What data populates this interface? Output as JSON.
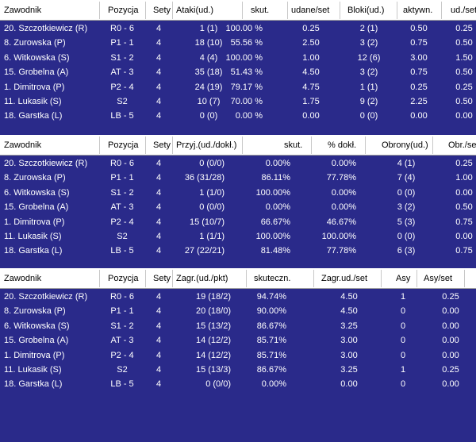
{
  "tables": [
    {
      "header": [
        "Zawodnik",
        "Pozycja",
        "Sety",
        "Ataki(ud.)",
        "skut.",
        "udane/set",
        "Bloki(ud.)",
        "aktywn.",
        "ud./set"
      ],
      "rows": [
        [
          "20. Szczotkiewicz (R)",
          "R0 - 6",
          "4",
          "1 (1)",
          "100.00 %",
          "0.25",
          "2 (1)",
          "0.50",
          "0.25"
        ],
        [
          "8. Zurowska (P)",
          "P1 - 1",
          "4",
          "18 (10)",
          "55.56 %",
          "2.50",
          "3 (2)",
          "0.75",
          "0.50"
        ],
        [
          "6. Witkowska (S)",
          "S1 - 2",
          "4",
          "4 (4)",
          "100.00 %",
          "1.00",
          "12 (6)",
          "3.00",
          "1.50"
        ],
        [
          "15. Grobelna (A)",
          "AT - 3",
          "4",
          "35 (18)",
          "51.43 %",
          "4.50",
          "3 (2)",
          "0.75",
          "0.50"
        ],
        [
          "1. Dimitrova (P)",
          "P2 - 4",
          "4",
          "24 (19)",
          "79.17 %",
          "4.75",
          "1 (1)",
          "0.25",
          "0.25"
        ],
        [
          "11. Lukasik (S)",
          "S2",
          "4",
          "10 (7)",
          "70.00 %",
          "1.75",
          "9 (2)",
          "2.25",
          "0.50"
        ],
        [
          "18. Garstka (L)",
          "LB - 5",
          "4",
          "0 (0)",
          "0.00 %",
          "0.00",
          "0 (0)",
          "0.00",
          "0.00"
        ]
      ]
    },
    {
      "header": [
        "Zawodnik",
        "Pozycja",
        "Sety",
        "Przyj.(ud./dokł.)",
        "skut.",
        "% dokł.",
        "Obrony(ud.)",
        "Obr./se"
      ],
      "rows": [
        [
          "20. Szczotkiewicz (R)",
          "R0 - 6",
          "4",
          "0 (0/0)",
          "0.00%",
          "0.00%",
          "4 (1)",
          "0.25"
        ],
        [
          "8. Zurowska (P)",
          "P1 - 1",
          "4",
          "36 (31/28)",
          "86.11%",
          "77.78%",
          "7 (4)",
          "1.00"
        ],
        [
          "6. Witkowska (S)",
          "S1 - 2",
          "4",
          "1 (1/0)",
          "100.00%",
          "0.00%",
          "0 (0)",
          "0.00"
        ],
        [
          "15. Grobelna (A)",
          "AT - 3",
          "4",
          "0 (0/0)",
          "0.00%",
          "0.00%",
          "3 (2)",
          "0.50"
        ],
        [
          "1. Dimitrova (P)",
          "P2 - 4",
          "4",
          "15 (10/7)",
          "66.67%",
          "46.67%",
          "5 (3)",
          "0.75"
        ],
        [
          "11. Lukasik (S)",
          "S2",
          "4",
          "1 (1/1)",
          "100.00%",
          "100.00%",
          "0 (0)",
          "0.00"
        ],
        [
          "18. Garstka (L)",
          "LB - 5",
          "4",
          "27 (22/21)",
          "81.48%",
          "77.78%",
          "6 (3)",
          "0.75"
        ]
      ]
    },
    {
      "header": [
        "Zawodnik",
        "Pozycja",
        "Sety",
        "Zagr.(ud./pkt)",
        "skuteczn.",
        "Zagr.ud./set",
        "Asy",
        "Asy/set"
      ],
      "rows": [
        [
          "20. Szczotkiewicz (R)",
          "R0 - 6",
          "4",
          "19 (18/2)",
          "94.74%",
          "4.50",
          "1",
          "0.25"
        ],
        [
          "8. Zurowska (P)",
          "P1 - 1",
          "4",
          "20 (18/0)",
          "90.00%",
          "4.50",
          "0",
          "0.00"
        ],
        [
          "6. Witkowska (S)",
          "S1 - 2",
          "4",
          "15 (13/2)",
          "86.67%",
          "3.25",
          "0",
          "0.00"
        ],
        [
          "15. Grobelna (A)",
          "AT - 3",
          "4",
          "14 (12/2)",
          "85.71%",
          "3.00",
          "0",
          "0.00"
        ],
        [
          "1. Dimitrova (P)",
          "P2 - 4",
          "4",
          "14 (12/2)",
          "85.71%",
          "3.00",
          "0",
          "0.00"
        ],
        [
          "11. Lukasik (S)",
          "S2",
          "4",
          "15 (13/3)",
          "86.67%",
          "3.25",
          "1",
          "0.25"
        ],
        [
          "18. Garstka (L)",
          "LB - 5",
          "4",
          "0 (0/0)",
          "0.00%",
          "0.00",
          "0",
          "0.00"
        ]
      ]
    }
  ]
}
